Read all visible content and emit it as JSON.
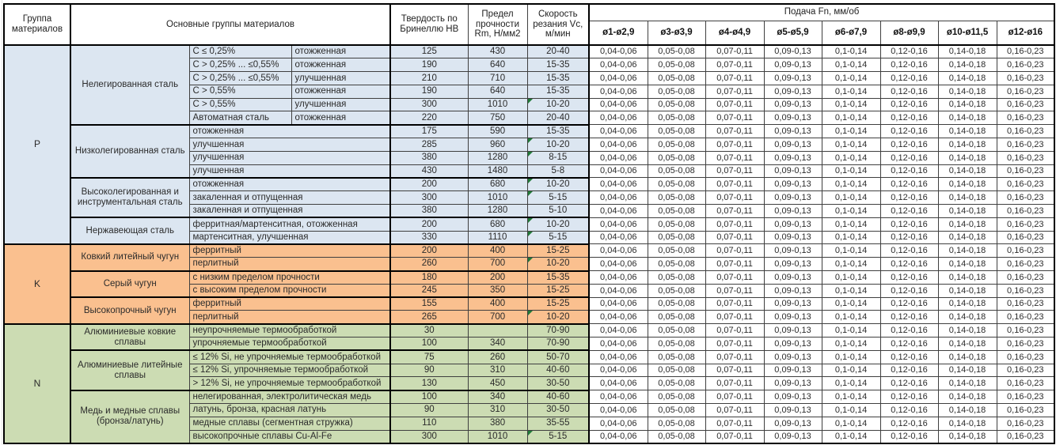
{
  "header": {
    "group_col": "Группа материалов",
    "materials_col": "Основные группы материалов",
    "hardness_col": "Твердость по Бринеллю HB",
    "strength_col": "Предел прочности Rm, Н/мм2",
    "speed_col": "Скорость резания Vc, м/мин",
    "feed_col": "Подача Fn, мм/об"
  },
  "feed": {
    "diameters": [
      "ø1-ø2,9",
      "ø3-ø3,9",
      "ø4-ø4,9",
      "ø5-ø5,9",
      "ø6-ø7,9",
      "ø8-ø9,9",
      "ø10-ø11,5",
      "ø12-ø16"
    ],
    "values": [
      "0,04-0,06",
      "0,05-0,08",
      "0,07-0,11",
      "0,09-0,13",
      "0,1-0,14",
      "0,12-0,16",
      "0,14-0,18",
      "0,16-0,23"
    ]
  },
  "colors": {
    "group_p": "#dce6f1",
    "group_k": "#fac08f",
    "group_n": "#ccdcb3",
    "comment_marker": "#217a38",
    "border_thin": "#3f3f3f",
    "border_thick": "#000000"
  },
  "groups": [
    {
      "code": "P",
      "color": "#dce6f1",
      "subgroups": [
        {
          "name": "Нелегированная сталь",
          "rows": [
            {
              "desc": [
                "C ≤ 0,25%",
                "отожженная"
              ],
              "hb": "125",
              "rm": "430",
              "vc": "20-40",
              "marker": false
            },
            {
              "desc": [
                "C > 0,25% ... ≤0,55%",
                "отожженная"
              ],
              "hb": "190",
              "rm": "640",
              "vc": "15-35",
              "marker": false
            },
            {
              "desc": [
                "C > 0,25% ... ≤0,55%",
                "улучшенная"
              ],
              "hb": "210",
              "rm": "710",
              "vc": "15-35",
              "marker": false
            },
            {
              "desc": [
                "C > 0,55%",
                "отожженная"
              ],
              "hb": "190",
              "rm": "640",
              "vc": "15-35",
              "marker": false
            },
            {
              "desc": [
                "C > 0,55%",
                "улучшенная"
              ],
              "hb": "300",
              "rm": "1010",
              "vc": "10-20",
              "marker": true
            },
            {
              "desc": [
                "Автоматная сталь",
                "отожженная"
              ],
              "hb": "220",
              "rm": "750",
              "vc": "20-40",
              "marker": false
            }
          ]
        },
        {
          "name": "Низколегированная сталь",
          "rows": [
            {
              "desc": [
                "отожженная"
              ],
              "hb": "175",
              "rm": "590",
              "vc": "15-35",
              "marker": false
            },
            {
              "desc": [
                "улучшенная"
              ],
              "hb": "285",
              "rm": "960",
              "vc": "10-20",
              "marker": true
            },
            {
              "desc": [
                "улучшенная"
              ],
              "hb": "380",
              "rm": "1280",
              "vc": "8-15",
              "marker": true
            },
            {
              "desc": [
                "улучшенная"
              ],
              "hb": "430",
              "rm": "1480",
              "vc": "5-8",
              "marker": false
            }
          ]
        },
        {
          "name": "Высоколегированная и инструментальная сталь",
          "rows": [
            {
              "desc": [
                "отожженная"
              ],
              "hb": "200",
              "rm": "680",
              "vc": "10-20",
              "marker": true
            },
            {
              "desc": [
                "закаленная и отпущенная"
              ],
              "hb": "300",
              "rm": "1010",
              "vc": "5-15",
              "marker": true
            },
            {
              "desc": [
                "закаленная и отпущенная"
              ],
              "hb": "380",
              "rm": "1280",
              "vc": "5-10",
              "marker": false
            }
          ]
        },
        {
          "name": "Нержавеющая сталь",
          "rows": [
            {
              "desc": [
                "ферритная/мартенситная, отожженная"
              ],
              "hb": "200",
              "rm": "680",
              "vc": "10-20",
              "marker": true
            },
            {
              "desc": [
                "мартенситная, улучшенная"
              ],
              "hb": "330",
              "rm": "1110",
              "vc": "5-15",
              "marker": true
            }
          ]
        }
      ]
    },
    {
      "code": "K",
      "color": "#fac08f",
      "subgroups": [
        {
          "name": "Ковкий литейный чугун",
          "rows": [
            {
              "desc": [
                "ферритный"
              ],
              "hb": "200",
              "rm": "400",
              "vc": "15-25",
              "marker": false
            },
            {
              "desc": [
                "перлитный"
              ],
              "hb": "260",
              "rm": "700",
              "vc": "10-20",
              "marker": true
            }
          ]
        },
        {
          "name": "Серый чугун",
          "rows": [
            {
              "desc": [
                "с низким пределом прочности"
              ],
              "hb": "180",
              "rm": "200",
              "vc": "15-35",
              "marker": false
            },
            {
              "desc": [
                "с высоким пределом прочности"
              ],
              "hb": "245",
              "rm": "350",
              "vc": "15-25",
              "marker": false
            }
          ]
        },
        {
          "name": "Высокопрочный чугун",
          "rows": [
            {
              "desc": [
                "ферритный"
              ],
              "hb": "155",
              "rm": "400",
              "vc": "15-25",
              "marker": false
            },
            {
              "desc": [
                "перлитный"
              ],
              "hb": "265",
              "rm": "700",
              "vc": "10-20",
              "marker": true
            }
          ]
        }
      ]
    },
    {
      "code": "N",
      "color": "#ccdcb3",
      "subgroups": [
        {
          "name": "Алюминиевые ковкие сплавы",
          "rows": [
            {
              "desc": [
                "неупрочняемые термообработкой"
              ],
              "hb": "30",
              "rm": "",
              "vc": "70-90",
              "marker": false
            },
            {
              "desc": [
                "упрочняемые термообработкой"
              ],
              "hb": "100",
              "rm": "340",
              "vc": "70-90",
              "marker": false
            }
          ]
        },
        {
          "name": "Алюминиевые литейные сплавы",
          "rows": [
            {
              "desc": [
                "≤ 12% Si, не упрочняемые термообработкой"
              ],
              "hb": "75",
              "rm": "260",
              "vc": "50-70",
              "marker": false
            },
            {
              "desc": [
                "≤ 12% Si, упрочняемые термообработкой"
              ],
              "hb": "90",
              "rm": "310",
              "vc": "40-60",
              "marker": false
            },
            {
              "desc": [
                "> 12% Si, не упрочняемые термообработкой"
              ],
              "hb": "130",
              "rm": "450",
              "vc": "30-50",
              "marker": false
            }
          ]
        },
        {
          "name": "Медь и медные сплавы (бронза/латунь)",
          "rows": [
            {
              "desc": [
                "нелегированная, электролитическая медь"
              ],
              "hb": "100",
              "rm": "340",
              "vc": "40-60",
              "marker": false
            },
            {
              "desc": [
                "латунь, бронза, красная латунь"
              ],
              "hb": "90",
              "rm": "310",
              "vc": "30-50",
              "marker": false
            },
            {
              "desc": [
                "медные сплавы (сегментная стружка)"
              ],
              "hb": "110",
              "rm": "380",
              "vc": "35-55",
              "marker": false
            },
            {
              "desc": [
                "высокопрочные сплавы Cu-Al-Fe"
              ],
              "hb": "300",
              "rm": "1010",
              "vc": "5-15",
              "marker": true
            }
          ]
        }
      ]
    }
  ]
}
